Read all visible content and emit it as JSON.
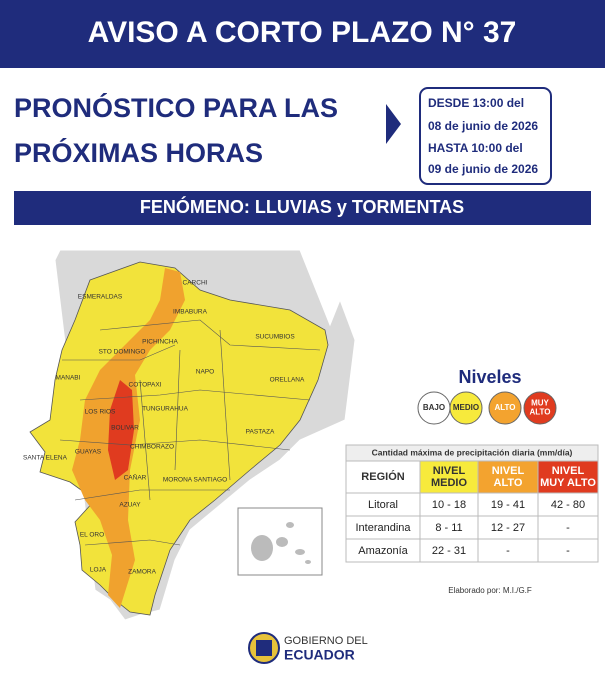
{
  "header": {
    "title": "AVISO A CORTO PLAZO N° 37"
  },
  "forecast": {
    "title_lines": [
      "PRONÓSTICO PARA LAS",
      "PRÓXIMAS HORAS"
    ],
    "validity": [
      "DESDE  13:00 del",
      "08 de junio de 2026",
      "HASTA 10:00 del",
      "09 de junio de 2026"
    ]
  },
  "phenomenon": "FENÓMENO:  LLUVIAS y TORMENTAS",
  "map": {
    "provinces": [
      "CARCHI",
      "ESMERALDAS",
      "IMBABURA",
      "SUCUMBIOS",
      "PICHINCHA",
      "STO DOMINGO",
      "NAPO",
      "MANABI",
      "COTOPAXI",
      "ORELLANA",
      "LOS RIOS",
      "TUNGURAHUA",
      "BOLIVAR",
      "PASTAZA",
      "SANTA ELENA",
      "GUAYAS",
      "CHIMBORAZO",
      "MORONA SANTIAGO",
      "CAÑAR",
      "AZUAY",
      "EL ORO",
      "LOJA",
      "ZAMORA"
    ]
  },
  "legend": {
    "title": "Niveles",
    "levels": [
      [
        "BAJO"
      ],
      [
        "MEDIO"
      ],
      [
        "ALTO"
      ],
      [
        "MUY",
        "ALTO"
      ]
    ]
  },
  "table": {
    "caption": "Cantidad máxima de precipitación diaria (mm/día)",
    "header": [
      [
        "REGIÓN"
      ],
      [
        "NIVEL",
        "MEDIO"
      ],
      [
        "NIVEL",
        "ALTO"
      ],
      [
        "NIVEL",
        "MUY ALTO"
      ]
    ],
    "rows": [
      [
        "Litoral",
        "10 - 18",
        "19 - 41",
        "42 - 80"
      ],
      [
        "Interandina",
        "8 - 11",
        "12 - 27",
        "-"
      ],
      [
        "Amazonía",
        "22 - 31",
        "-",
        "-"
      ]
    ]
  },
  "credit": "Elaborado por: M.I./G.F",
  "footer": {
    "lines": [
      "GOBIERNO DEL",
      "ECUADOR"
    ]
  }
}
